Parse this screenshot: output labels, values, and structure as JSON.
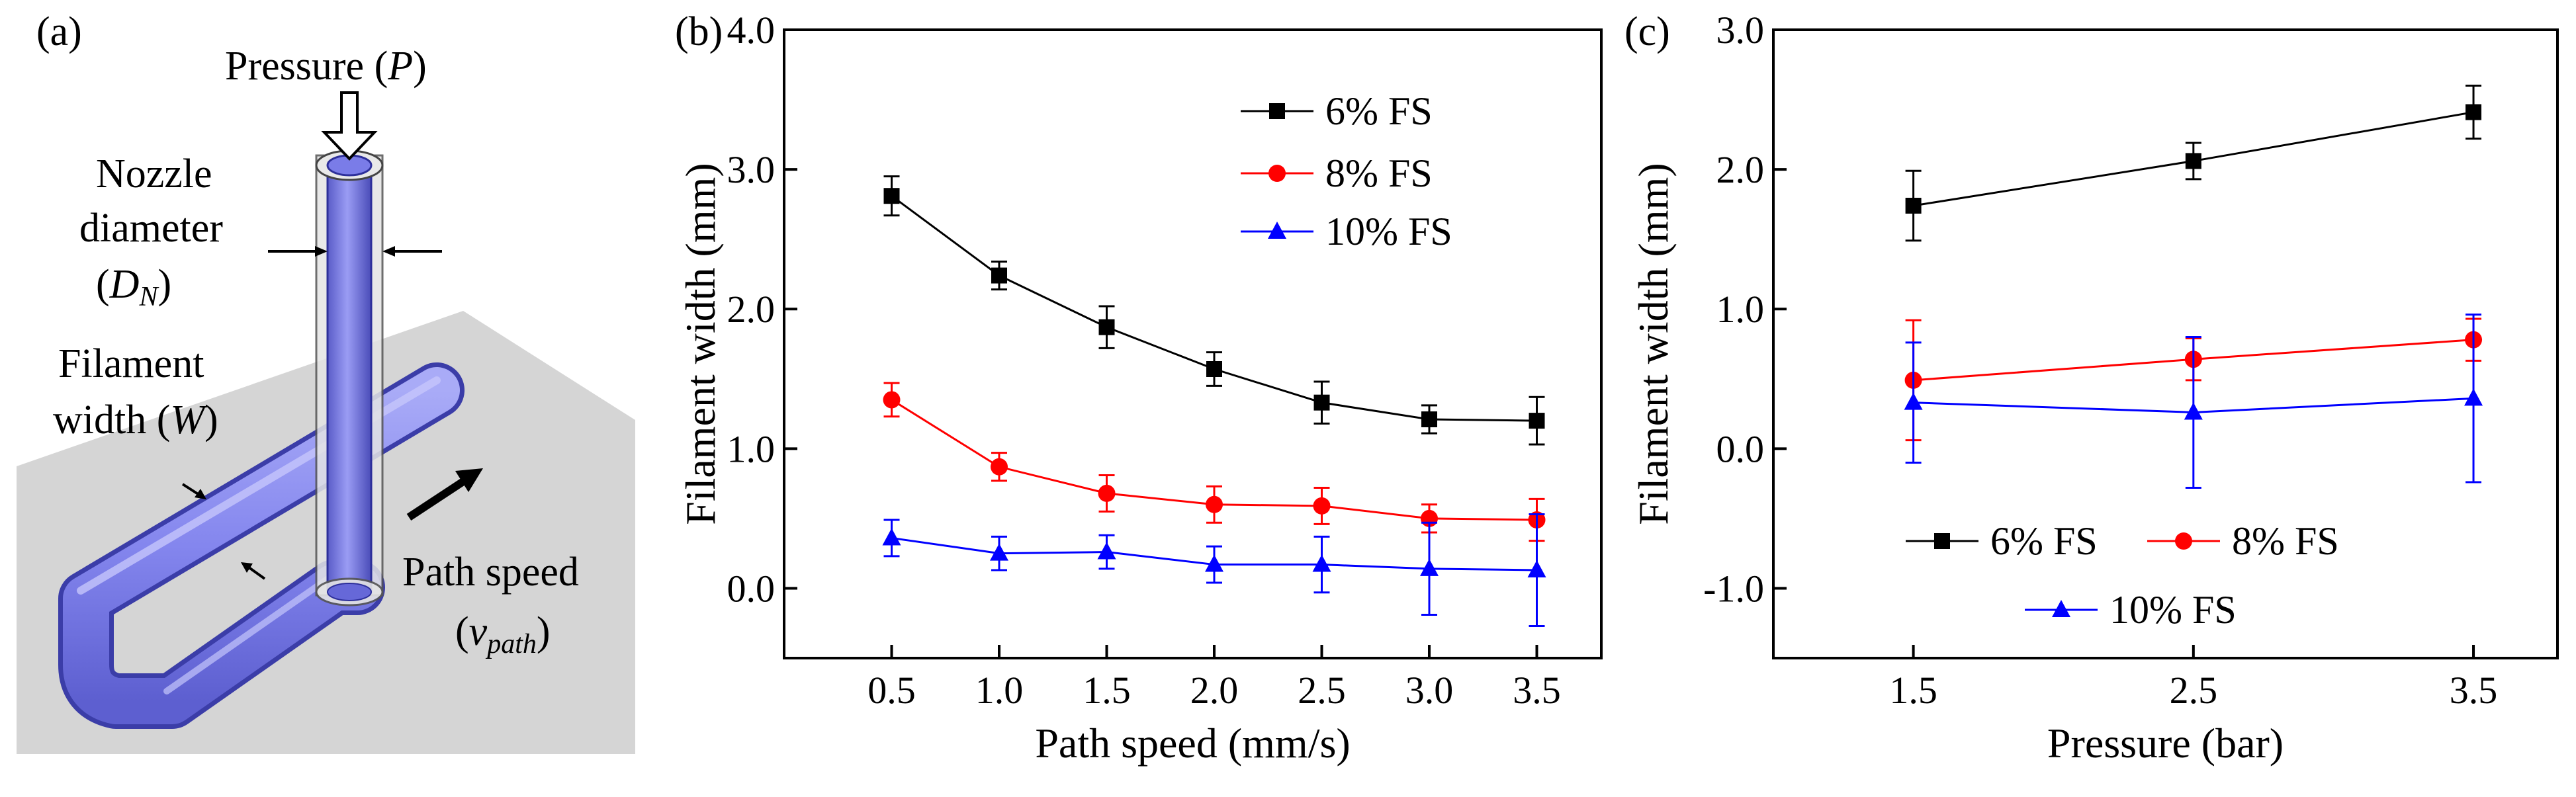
{
  "panel_a": {
    "label": "(a)",
    "pressure": "Pressure (",
    "pressure_sym": "P",
    "pressure_close": ")",
    "nozzle_line1": "Nozzle",
    "nozzle_line2": "diameter",
    "nozzle_sym_open": "(",
    "nozzle_sym": "D",
    "nozzle_sub": "N",
    "nozzle_sym_close": ")",
    "filament_line1": "Filament",
    "filament_line2": "width (",
    "filament_sym": "W",
    "filament_close": ")",
    "path_line1": "Path speed",
    "path_open": "(",
    "path_sym": "v",
    "path_sub": "path",
    "path_close": ")"
  },
  "chart_data": [
    {
      "panel": "(b)",
      "type": "line",
      "title": "",
      "xlabel": "Path speed (mm/s)",
      "ylabel": "Filament  width (mm)",
      "xlim": [
        0,
        3.8
      ],
      "ylim": [
        -0.5,
        4.0
      ],
      "xticks": [
        0.5,
        1.0,
        1.5,
        2.0,
        2.5,
        3.0,
        3.5
      ],
      "xtick_labels": [
        "0.5",
        "1.0",
        "1.5",
        "2.0",
        "2.5",
        "3.0",
        "3.5"
      ],
      "yticks": [
        0.0,
        1.0,
        2.0,
        3.0,
        4.0
      ],
      "ytick_labels": [
        "0.0",
        "1.0",
        "2.0",
        "3.0",
        "4.0"
      ],
      "legend_position": "top-right",
      "x": [
        0.5,
        1.0,
        1.5,
        2.0,
        2.5,
        3.0,
        3.5
      ],
      "series": [
        {
          "name": "6% FS",
          "color": "#000000",
          "marker": "square",
          "values": [
            2.81,
            2.24,
            1.87,
            1.57,
            1.33,
            1.21,
            1.2
          ],
          "errors": [
            0.14,
            0.1,
            0.15,
            0.12,
            0.15,
            0.1,
            0.17
          ]
        },
        {
          "name": "8% FS",
          "color": "#ff0000",
          "marker": "circle",
          "values": [
            1.35,
            0.87,
            0.68,
            0.6,
            0.59,
            0.5,
            0.49
          ],
          "errors": [
            0.12,
            0.1,
            0.13,
            0.13,
            0.13,
            0.1,
            0.15
          ]
        },
        {
          "name": "10% FS",
          "color": "#0000ff",
          "marker": "triangle",
          "values": [
            0.36,
            0.25,
            0.26,
            0.17,
            0.17,
            0.14,
            0.13
          ],
          "errors": [
            0.13,
            0.12,
            0.12,
            0.13,
            0.2,
            0.33,
            0.4
          ]
        }
      ]
    },
    {
      "panel": "(c)",
      "type": "line",
      "title": "",
      "xlabel": "Pressure (bar)",
      "ylabel": "Filament  width (mm)",
      "xlim": [
        1.0,
        3.8
      ],
      "ylim": [
        -1.5,
        3.0
      ],
      "xticks": [
        1.5,
        2.5,
        3.5
      ],
      "xtick_labels": [
        "1.5",
        "2.5",
        "3.5"
      ],
      "yticks": [
        -1.0,
        0.0,
        1.0,
        2.0,
        3.0
      ],
      "ytick_labels": [
        "-1.0",
        "0.0",
        "1.0",
        "2.0",
        "3.0"
      ],
      "legend_position": "bottom",
      "x": [
        1.5,
        2.5,
        3.5
      ],
      "series": [
        {
          "name": "6% FS",
          "color": "#000000",
          "marker": "square",
          "values": [
            1.74,
            2.06,
            2.41
          ],
          "errors": [
            0.25,
            0.13,
            0.19
          ]
        },
        {
          "name": "8% FS",
          "color": "#ff0000",
          "marker": "circle",
          "values": [
            0.49,
            0.64,
            0.78
          ],
          "errors": [
            0.43,
            0.15,
            0.15
          ]
        },
        {
          "name": "10% FS",
          "color": "#0000ff",
          "marker": "triangle",
          "values": [
            0.33,
            0.26,
            0.36
          ],
          "errors": [
            0.43,
            0.54,
            0.6
          ]
        }
      ]
    }
  ]
}
